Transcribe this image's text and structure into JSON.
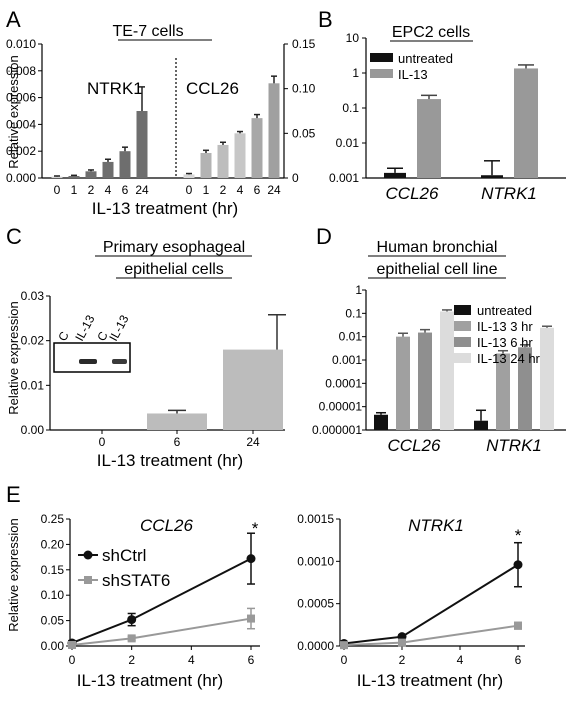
{
  "panels": {
    "A": {
      "letter": "A",
      "title": "TE-7 cells",
      "ylabel": "Relative expression",
      "xlabel": "IL-13 treatment (hr)",
      "left_group": "NTRK1",
      "right_group": "CCL26",
      "left_ticks": [
        "0.000",
        "0.002",
        "0.004",
        "0.006",
        "0.008",
        "0.010"
      ],
      "right_ticks": [
        "0",
        "0.05",
        "0.10",
        "0.15"
      ]
    },
    "B": {
      "letter": "B",
      "title": "EPC2 cells",
      "ticks": [
        "0.001",
        "0.01",
        "0.1",
        "1",
        "10"
      ]
    },
    "C": {
      "letter": "C",
      "title_line1": "Primary esophageal",
      "title_line2": "epithelial cells",
      "ylabel": "Relative expression",
      "xlabel": "IL-13 treatment (hr)",
      "ticks": [
        "0.00",
        "0.01",
        "0.02",
        "0.03"
      ],
      "blot_labels": [
        "C",
        "IL-13",
        "C",
        "IL-13"
      ]
    },
    "D": {
      "letter": "D",
      "title_line1": "Human bronchial",
      "title_line2": "epithelial cell line",
      "ticks": [
        "0.000001",
        "0.00001",
        "0.0001",
        "0.001",
        "0.01",
        "0.1",
        "1"
      ]
    },
    "E": {
      "letter": "E",
      "ylabel": "Relative expression",
      "xlabel": "IL-13 treatment (hr)",
      "left_ticks": [
        "0.00",
        "0.05",
        "0.10",
        "0.15",
        "0.20",
        "0.25"
      ],
      "right_ticks": [
        "0.0000",
        "0.0005",
        "0.0010",
        "0.0015"
      ],
      "x_ticks": [
        "0",
        "2",
        "4",
        "6"
      ],
      "star": "*"
    }
  },
  "chart_data": [
    {
      "panel": "A",
      "type": "bar",
      "title": "TE-7 cells",
      "xlabel": "IL-13 treatment (hr)",
      "ylabel": "Relative expression",
      "groups": [
        {
          "name": "NTRK1",
          "categories": [
            "0",
            "1",
            "2",
            "4",
            "6",
            "24"
          ],
          "values": [
            0.0001,
            0.00015,
            0.0005,
            0.0012,
            0.002,
            0.005
          ],
          "errors": [
            5e-05,
            5e-05,
            0.0001,
            0.0002,
            0.0003,
            0.0018
          ],
          "ylim": [
            0,
            0.01
          ]
        },
        {
          "name": "CCL26",
          "categories": [
            "0",
            "1",
            "2",
            "4",
            "6",
            "24"
          ],
          "values": [
            0.004,
            0.028,
            0.037,
            0.05,
            0.067,
            0.106
          ],
          "errors": [
            0.001,
            0.003,
            0.003,
            0.002,
            0.004,
            0.008
          ],
          "ylim": [
            0,
            0.15
          ]
        }
      ]
    },
    {
      "panel": "B",
      "type": "bar",
      "title": "EPC2 cells",
      "scale": "log",
      "ylim": [
        0.001,
        10
      ],
      "categories": [
        "CCL26",
        "NTRK1"
      ],
      "series": [
        {
          "name": "untreated",
          "color": "#111111",
          "values": [
            0.0014,
            0.0012
          ],
          "errors_up": [
            0.0019,
            0.0031
          ]
        },
        {
          "name": "IL-13",
          "color": "#999999",
          "values": [
            0.18,
            1.35
          ],
          "errors_up": [
            0.23,
            1.7
          ]
        }
      ]
    },
    {
      "panel": "C",
      "type": "bar",
      "title": "Primary esophageal epithelial cells",
      "xlabel": "IL-13 treatment (hr)",
      "ylabel": "Relative expression",
      "ylim": [
        0,
        0.03
      ],
      "categories": [
        "0",
        "6",
        "24"
      ],
      "values": [
        0.0,
        0.0037,
        0.018
      ],
      "errors": [
        0.0,
        0.0007,
        0.0078
      ]
    },
    {
      "panel": "D",
      "type": "bar",
      "title": "Human bronchial epithelial cell line",
      "scale": "log",
      "ylim": [
        1e-06,
        1
      ],
      "categories": [
        "CCL26",
        "NTRK1"
      ],
      "series": [
        {
          "name": "untreated",
          "color": "#111111",
          "values": [
            4.5e-06,
            2.5e-06
          ],
          "errors_up": [
            5.5e-06,
            7e-06
          ]
        },
        {
          "name": "IL-13 3 hr",
          "color": "#999999",
          "values": [
            0.01,
            0.0019
          ],
          "errors_up": [
            0.014,
            0.0025
          ]
        },
        {
          "name": "IL-13 6 hr",
          "color": "#888888",
          "values": [
            0.015,
            0.0035
          ],
          "errors_up": [
            0.02,
            0.0045
          ]
        },
        {
          "name": "IL-13 24 hr",
          "color": "#dddddd",
          "values": [
            0.12,
            0.024
          ],
          "errors_up": [
            0.14,
            0.028
          ]
        }
      ]
    },
    {
      "panel": "E-left",
      "type": "line",
      "title": "CCL26",
      "xlabel": "IL-13 treatment (hr)",
      "ylabel": "Relative expression",
      "xlim": [
        0,
        6
      ],
      "ylim": [
        0,
        0.25
      ],
      "x": [
        0,
        2,
        6
      ],
      "series": [
        {
          "name": "shCtrl",
          "color": "#111111",
          "marker": "circle",
          "values": [
            0.006,
            0.052,
            0.172
          ],
          "errors": [
            0.004,
            0.012,
            0.05
          ]
        },
        {
          "name": "shSTAT6",
          "color": "#999999",
          "marker": "square",
          "values": [
            0.002,
            0.015,
            0.054
          ],
          "errors": [
            0.002,
            0.004,
            0.02
          ]
        }
      ]
    },
    {
      "panel": "E-right",
      "type": "line",
      "title": "NTRK1",
      "xlabel": "IL-13 treatment (hr)",
      "xlim": [
        0,
        6
      ],
      "ylim": [
        0,
        0.0015
      ],
      "x": [
        0,
        2,
        6
      ],
      "series": [
        {
          "name": "shCtrl",
          "color": "#111111",
          "marker": "circle",
          "values": [
            3e-05,
            0.00011,
            0.00096
          ],
          "errors": [
            1e-05,
            2e-05,
            0.00026
          ]
        },
        {
          "name": "shSTAT6",
          "color": "#999999",
          "marker": "square",
          "values": [
            1e-05,
            4e-05,
            0.00024
          ],
          "errors": [
            1e-05,
            1e-05,
            4e-05
          ]
        }
      ]
    }
  ]
}
